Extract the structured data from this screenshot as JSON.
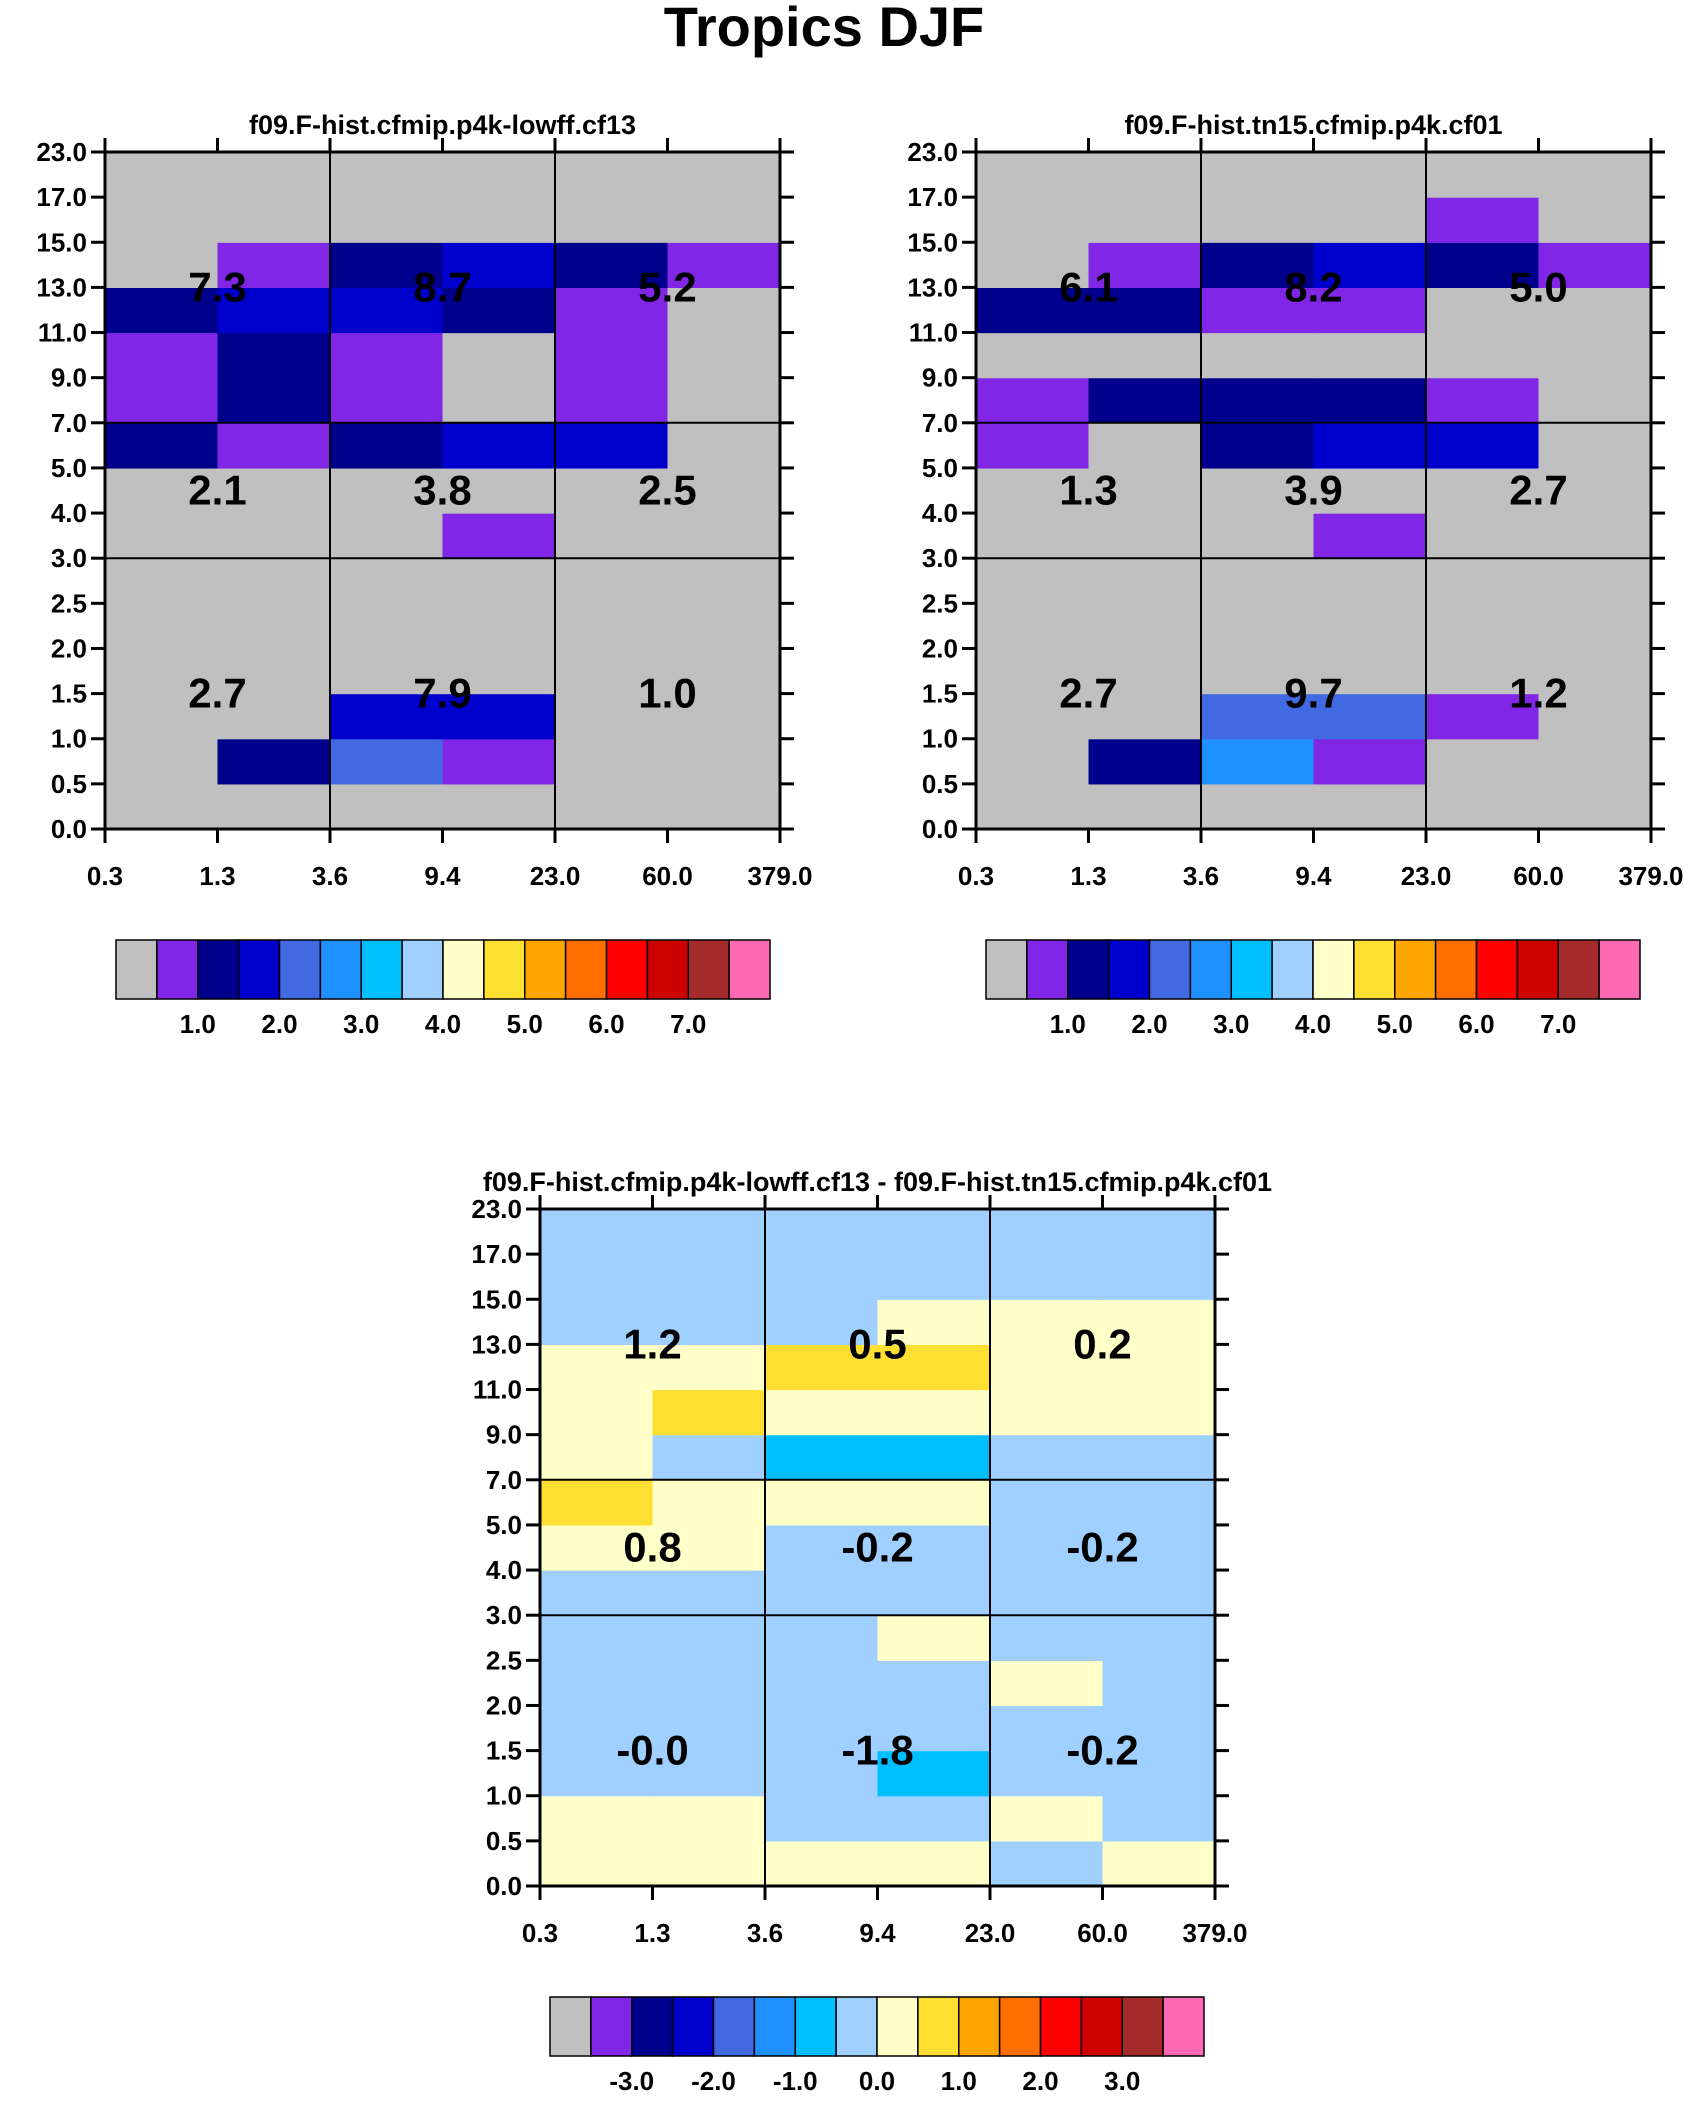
{
  "figure_title": "Tropics DJF",
  "chart_data": [
    {
      "id": "top-left",
      "type": "heatmap",
      "title": "f09.F-hist.cfmip.p4k-lowff.cf13",
      "x_ticks": [
        "0.3",
        "1.3",
        "3.6",
        "9.4",
        "23.0",
        "60.0",
        "379.0"
      ],
      "y_ticks": [
        "0.0",
        "0.5",
        "1.0",
        "1.5",
        "2.0",
        "2.5",
        "3.0",
        "4.0",
        "5.0",
        "7.0",
        "9.0",
        "11.0",
        "13.0",
        "15.0",
        "17.0",
        "23.0"
      ],
      "cells": [
        [
          0,
          0,
          0,
          0,
          0,
          0
        ],
        [
          0,
          2,
          4,
          1,
          0,
          0
        ],
        [
          0,
          0,
          3,
          3,
          0,
          0
        ],
        [
          0,
          0,
          0,
          0,
          0,
          0
        ],
        [
          0,
          0,
          0,
          0,
          0,
          0
        ],
        [
          0,
          0,
          0,
          0,
          0,
          0
        ],
        [
          0,
          0,
          0,
          1,
          0,
          0
        ],
        [
          0,
          0,
          0,
          0,
          0,
          0
        ],
        [
          2,
          1,
          2,
          3,
          3,
          0
        ],
        [
          1,
          2,
          1,
          0,
          1,
          0
        ],
        [
          1,
          2,
          1,
          0,
          1,
          0
        ],
        [
          2,
          3,
          3,
          2,
          1,
          0
        ],
        [
          0,
          1,
          2,
          3,
          2,
          1
        ],
        [
          0,
          0,
          0,
          0,
          0,
          0
        ],
        [
          0,
          0,
          0,
          0,
          0,
          0
        ]
      ],
      "region_values": [
        [
          "7.3",
          "8.7",
          "5.2"
        ],
        [
          "2.1",
          "3.8",
          "2.5"
        ],
        [
          "2.7",
          "7.9",
          "1.0"
        ]
      ],
      "colorbar_labels": [
        "1.0",
        "2.0",
        "3.0",
        "4.0",
        "5.0",
        "6.0",
        "7.0"
      ]
    },
    {
      "id": "top-right",
      "type": "heatmap",
      "title": "f09.F-hist.tn15.cfmip.p4k.cf01",
      "x_ticks": [
        "0.3",
        "1.3",
        "3.6",
        "9.4",
        "23.0",
        "60.0",
        "379.0"
      ],
      "y_ticks": [
        "0.0",
        "0.5",
        "1.0",
        "1.5",
        "2.0",
        "2.5",
        "3.0",
        "4.0",
        "5.0",
        "7.0",
        "9.0",
        "11.0",
        "13.0",
        "15.0",
        "17.0",
        "23.0"
      ],
      "cells": [
        [
          0,
          0,
          0,
          0,
          0,
          0
        ],
        [
          0,
          2,
          5,
          1,
          0,
          0
        ],
        [
          0,
          0,
          4,
          4,
          1,
          0
        ],
        [
          0,
          0,
          0,
          0,
          0,
          0
        ],
        [
          0,
          0,
          0,
          0,
          0,
          0
        ],
        [
          0,
          0,
          0,
          0,
          0,
          0
        ],
        [
          0,
          0,
          0,
          1,
          0,
          0
        ],
        [
          0,
          0,
          0,
          0,
          0,
          0
        ],
        [
          1,
          0,
          2,
          3,
          3,
          0
        ],
        [
          1,
          2,
          2,
          2,
          1,
          0
        ],
        [
          0,
          0,
          0,
          0,
          0,
          0
        ],
        [
          2,
          2,
          1,
          1,
          0,
          0
        ],
        [
          0,
          1,
          2,
          3,
          2,
          1
        ],
        [
          0,
          0,
          0,
          0,
          1,
          0
        ],
        [
          0,
          0,
          0,
          0,
          0,
          0
        ]
      ],
      "region_values": [
        [
          "6.1",
          "8.2",
          "5.0"
        ],
        [
          "1.3",
          "3.9",
          "2.7"
        ],
        [
          "2.7",
          "9.7",
          "1.2"
        ]
      ],
      "colorbar_labels": [
        "1.0",
        "2.0",
        "3.0",
        "4.0",
        "5.0",
        "6.0",
        "7.0"
      ]
    },
    {
      "id": "bottom",
      "type": "heatmap",
      "title": "f09.F-hist.cfmip.p4k-lowff.cf13 - f09.F-hist.tn15.cfmip.p4k.cf01",
      "x_ticks": [
        "0.3",
        "1.3",
        "3.6",
        "9.4",
        "23.0",
        "60.0",
        "379.0"
      ],
      "y_ticks": [
        "0.0",
        "0.5",
        "1.0",
        "1.5",
        "2.0",
        "2.5",
        "3.0",
        "4.0",
        "5.0",
        "7.0",
        "9.0",
        "11.0",
        "13.0",
        "15.0",
        "17.0",
        "23.0"
      ],
      "cells": [
        [
          8,
          8,
          8,
          8,
          7,
          8
        ],
        [
          8,
          8,
          7,
          7,
          8,
          7
        ],
        [
          7,
          7,
          7,
          6,
          7,
          7
        ],
        [
          7,
          7,
          7,
          7,
          7,
          7
        ],
        [
          7,
          7,
          7,
          7,
          8,
          7
        ],
        [
          7,
          7,
          7,
          8,
          7,
          7
        ],
        [
          7,
          7,
          7,
          7,
          7,
          7
        ],
        [
          8,
          8,
          7,
          7,
          7,
          7
        ],
        [
          9,
          8,
          8,
          8,
          7,
          7
        ],
        [
          8,
          7,
          6,
          6,
          7,
          7
        ],
        [
          8,
          9,
          8,
          8,
          8,
          8
        ],
        [
          8,
          8,
          9,
          9,
          8,
          8
        ],
        [
          7,
          7,
          7,
          8,
          8,
          8
        ],
        [
          7,
          7,
          7,
          7,
          7,
          7
        ],
        [
          7,
          7,
          7,
          7,
          7,
          7
        ]
      ],
      "region_values": [
        [
          "1.2",
          "0.5",
          "0.2"
        ],
        [
          "0.8",
          "-0.2",
          "-0.2"
        ],
        [
          "-0.0",
          "-1.8",
          "-0.2"
        ]
      ],
      "colorbar_labels": [
        "-3.0",
        "-2.0",
        "-1.0",
        "0.0",
        "1.0",
        "2.0",
        "3.0"
      ]
    }
  ],
  "palette": [
    "#c0c0c0",
    "#8125e6",
    "#00008c",
    "#0000cd",
    "#4169e1",
    "#1e90ff",
    "#00bfff",
    "#a0d0ff",
    "#ffffc8",
    "#ffe032",
    "#ffa500",
    "#ff6e00",
    "#ff0000",
    "#cd0000",
    "#a52a2a",
    "#ff69b4"
  ]
}
